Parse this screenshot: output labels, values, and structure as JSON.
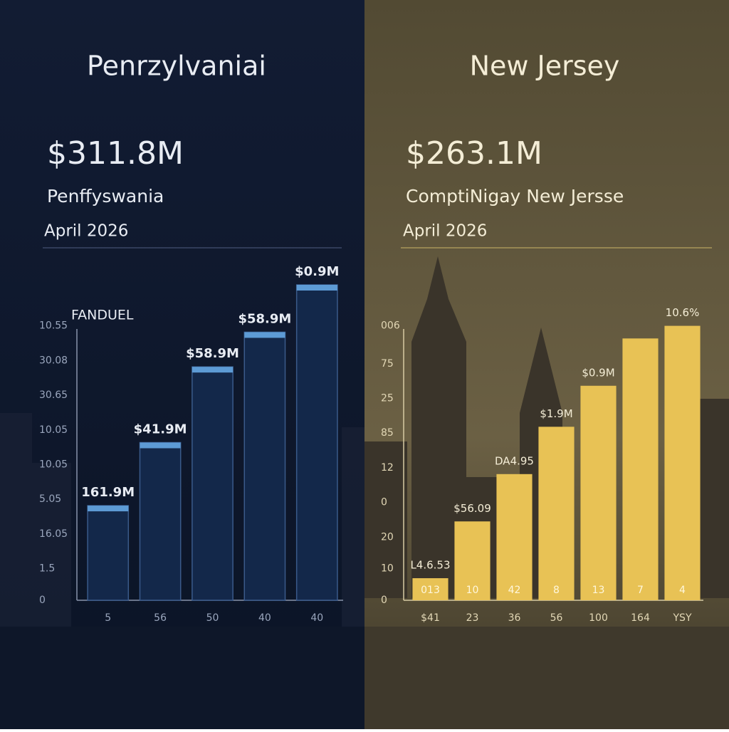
{
  "chart_data": [
    {
      "type": "bar",
      "title": "Penrzylvaniai",
      "headline": "$311.8M",
      "subtitle": "Penffyswania",
      "date": "April 2026",
      "label": "FANDUEL",
      "categories": [
        "5",
        "56",
        "50",
        "40",
        "40"
      ],
      "values": [
        30,
        50,
        74,
        85,
        100
      ],
      "bar_labels": [
        "161.9M",
        "$41.9M",
        "$58.9M",
        "$58.9M",
        "$0.9M"
      ],
      "ylim": [
        0,
        100
      ],
      "yticks": [
        {
          "value": 87,
          "label": "10.55"
        },
        {
          "value": 76,
          "label": "30.08"
        },
        {
          "value": 65,
          "label": "30.65"
        },
        {
          "value": 54,
          "label": "10.05"
        },
        {
          "value": 43,
          "label": "10.05"
        },
        {
          "value": 32,
          "label": "5.05"
        },
        {
          "value": 21,
          "label": "16.05"
        },
        {
          "value": 10,
          "label": "1.5"
        },
        0
      ],
      "color": "#13284a",
      "cap_color": "#5d9bd5",
      "grid": false
    },
    {
      "type": "bar",
      "title": "New Jersey",
      "headline": "$263.1M",
      "subtitle": "ComptiNigay New Jersse",
      "date": "April 2026",
      "categories": [
        "$41",
        "23",
        "36",
        "56",
        "100",
        "164",
        "YSY"
      ],
      "values": [
        7,
        25,
        40,
        55,
        68,
        83,
        87
      ],
      "bar_labels": [
        "L4.6.53",
        "$56.09",
        "DA4.95",
        "$1.9M",
        "$0.9M",
        null,
        "10.6%"
      ],
      "inner_labels": [
        "013",
        "10",
        "42",
        "8",
        "13",
        "7",
        "4"
      ],
      "ylim": [
        0,
        100
      ],
      "yticks": [
        {
          "value": 87,
          "label": "006"
        },
        75,
        {
          "value": 64,
          "label": "25"
        },
        {
          "value": 53,
          "label": "85"
        },
        {
          "value": 42,
          "label": "12"
        },
        {
          "value": 31,
          "label": "0"
        },
        20,
        10,
        0
      ],
      "color": "#e8c255",
      "grid": false
    }
  ]
}
